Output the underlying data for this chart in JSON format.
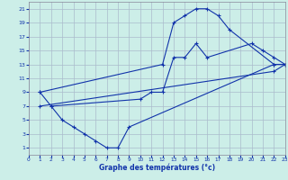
{
  "bg_color": "#cceee8",
  "grid_color": "#aabbcc",
  "line_color": "#1133aa",
  "xlabel": "Graphe des températures (°c)",
  "xlim": [
    0,
    23
  ],
  "ylim": [
    0,
    22
  ],
  "xticks": [
    0,
    1,
    2,
    3,
    4,
    5,
    6,
    7,
    8,
    9,
    10,
    11,
    12,
    13,
    14,
    15,
    16,
    17,
    18,
    19,
    20,
    21,
    22,
    23
  ],
  "yticks": [
    1,
    3,
    5,
    7,
    9,
    11,
    13,
    15,
    17,
    19,
    21
  ],
  "curves": [
    {
      "x": [
        1,
        12,
        13,
        14,
        15,
        16,
        17,
        18,
        22,
        23
      ],
      "y": [
        9,
        13,
        19,
        20,
        21,
        21,
        20,
        18,
        13,
        13
      ]
    },
    {
      "x": [
        1,
        2,
        10,
        11,
        12,
        13,
        14,
        15,
        16,
        20,
        21,
        22,
        23
      ],
      "y": [
        9,
        7,
        8,
        9,
        9,
        14,
        14,
        16,
        14,
        16,
        15,
        14,
        13
      ]
    },
    {
      "x": [
        2,
        3,
        4,
        5,
        6,
        7,
        8,
        9,
        22,
        23
      ],
      "y": [
        7,
        5,
        4,
        3,
        2,
        1,
        1,
        4,
        13,
        13
      ]
    },
    {
      "x": [
        1,
        22,
        23
      ],
      "y": [
        7,
        12,
        13
      ]
    }
  ]
}
